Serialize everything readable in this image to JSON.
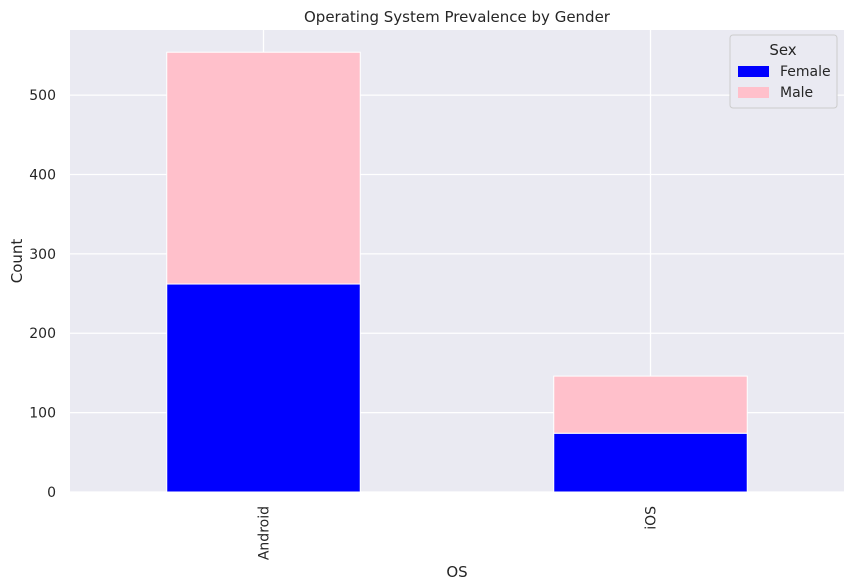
{
  "chart_data": {
    "type": "bar",
    "stacked": true,
    "title": "Operating System Prevalence by Gender",
    "xlabel": "OS",
    "ylabel": "Count",
    "categories": [
      "Android",
      "iOS"
    ],
    "series": [
      {
        "name": "Female",
        "values": [
          262,
          74
        ],
        "color": "#0000ff"
      },
      {
        "name": "Male",
        "values": [
          292,
          72
        ],
        "color": "#ffc0cb"
      }
    ],
    "ylim": [
      0,
      582
    ],
    "yticks": [
      0,
      100,
      200,
      300,
      400,
      500
    ],
    "grid": true,
    "legend": {
      "title": "Sex",
      "position": "top-right"
    },
    "colors": {
      "plot_background": "#eaeaf2",
      "grid": "#ffffff"
    }
  }
}
